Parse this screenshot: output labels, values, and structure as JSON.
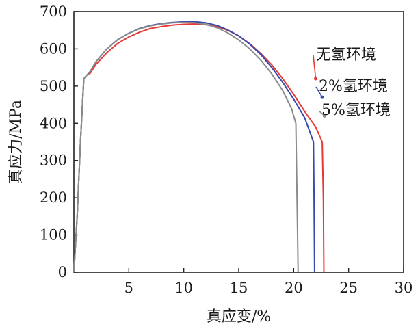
{
  "chart_data": {
    "type": "line",
    "xlabel": "真应变/%",
    "ylabel": "真应力/MPa",
    "xlim": [
      0,
      30
    ],
    "ylim": [
      0,
      700
    ],
    "xticks": [
      5,
      10,
      15,
      20,
      25,
      30
    ],
    "yticks": [
      0,
      100,
      200,
      300,
      400,
      500,
      600,
      700
    ],
    "grid": false,
    "series": [
      {
        "name": "无氢环境",
        "color": "#e53935",
        "points": [
          [
            0,
            0
          ],
          [
            0.3,
            150
          ],
          [
            0.6,
            350
          ],
          [
            0.9,
            520
          ],
          [
            1.2,
            530
          ],
          [
            1.5,
            535
          ],
          [
            2,
            558
          ],
          [
            3,
            590
          ],
          [
            4,
            615
          ],
          [
            5,
            632
          ],
          [
            6,
            645
          ],
          [
            7,
            655
          ],
          [
            8,
            660
          ],
          [
            9,
            664
          ],
          [
            10,
            666
          ],
          [
            11,
            667
          ],
          [
            12,
            665
          ],
          [
            13,
            660
          ],
          [
            14,
            650
          ],
          [
            15,
            635
          ],
          [
            16,
            614
          ],
          [
            17,
            588
          ],
          [
            18,
            557
          ],
          [
            19,
            520
          ],
          [
            20,
            478
          ],
          [
            21,
            432
          ],
          [
            22,
            390
          ],
          [
            22.6,
            350
          ],
          [
            22.7,
            200
          ],
          [
            22.75,
            0
          ]
        ]
      },
      {
        "name": "2%氢环境",
        "color": "#3949ab",
        "points": [
          [
            0,
            0
          ],
          [
            0.3,
            150
          ],
          [
            0.6,
            350
          ],
          [
            0.9,
            520
          ],
          [
            1.2,
            530
          ],
          [
            1.5,
            540
          ],
          [
            2,
            565
          ],
          [
            3,
            600
          ],
          [
            4,
            625
          ],
          [
            5,
            642
          ],
          [
            6,
            655
          ],
          [
            7,
            663
          ],
          [
            8,
            668
          ],
          [
            9,
            671
          ],
          [
            10,
            673
          ],
          [
            11,
            673
          ],
          [
            12,
            670
          ],
          [
            13,
            663
          ],
          [
            14,
            651
          ],
          [
            15,
            635
          ],
          [
            16,
            613
          ],
          [
            17,
            585
          ],
          [
            18,
            550
          ],
          [
            19,
            510
          ],
          [
            20,
            465
          ],
          [
            21,
            415
          ],
          [
            21.8,
            350
          ],
          [
            21.85,
            200
          ],
          [
            21.9,
            0
          ]
        ]
      },
      {
        "name": "5%氢环境",
        "color": "#8a8a8a",
        "points": [
          [
            0,
            0
          ],
          [
            0.3,
            150
          ],
          [
            0.6,
            350
          ],
          [
            0.9,
            520
          ],
          [
            1.2,
            530
          ],
          [
            1.5,
            540
          ],
          [
            2,
            565
          ],
          [
            3,
            600
          ],
          [
            4,
            625
          ],
          [
            5,
            642
          ],
          [
            6,
            654
          ],
          [
            7,
            662
          ],
          [
            8,
            667
          ],
          [
            9,
            670
          ],
          [
            10,
            671
          ],
          [
            11,
            670
          ],
          [
            12,
            666
          ],
          [
            13,
            657
          ],
          [
            14,
            643
          ],
          [
            15,
            624
          ],
          [
            16,
            600
          ],
          [
            17,
            570
          ],
          [
            18,
            533
          ],
          [
            19,
            488
          ],
          [
            19.8,
            440
          ],
          [
            20.2,
            400
          ],
          [
            20.3,
            200
          ],
          [
            20.4,
            0
          ]
        ]
      }
    ],
    "annotations": [
      {
        "text": "无氢环境",
        "series": 0,
        "at": [
          22.0,
          520
        ]
      },
      {
        "text": "2%氢环境",
        "series": 1,
        "at": [
          22.6,
          470
        ]
      },
      {
        "text": "5%氢环境",
        "series": 2,
        "at": [
          22.8,
          420
        ]
      }
    ]
  }
}
